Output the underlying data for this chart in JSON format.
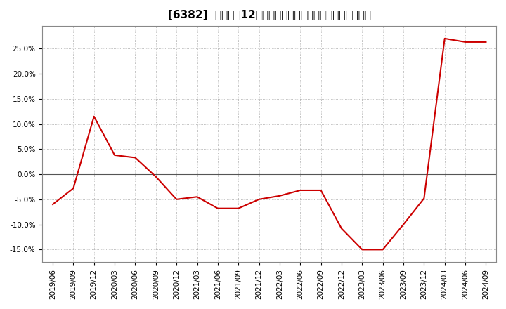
{
  "title": "[6382]  喀上高の12か月移動合計の対前年同期増減率の推移",
  "line_color": "#cc0000",
  "background_color": "#ffffff",
  "plot_bg_color": "#ffffff",
  "grid_color": "#aaaaaa",
  "zero_line_color": "#555555",
  "dates": [
    "2019/06",
    "2019/09",
    "2019/12",
    "2020/03",
    "2020/06",
    "2020/09",
    "2020/12",
    "2021/03",
    "2021/06",
    "2021/09",
    "2021/12",
    "2022/03",
    "2022/06",
    "2022/09",
    "2022/12",
    "2023/03",
    "2023/06",
    "2023/09",
    "2023/12",
    "2024/03",
    "2024/06",
    "2024/09"
  ],
  "values": [
    -0.06,
    -0.028,
    0.115,
    0.038,
    0.033,
    -0.005,
    -0.05,
    -0.045,
    -0.068,
    -0.068,
    -0.05,
    -0.043,
    -0.032,
    -0.032,
    -0.108,
    -0.15,
    -0.15,
    -0.1,
    -0.048,
    0.27,
    0.263,
    0.263
  ],
  "ylim": [
    -0.175,
    0.295
  ],
  "yticks": [
    -0.15,
    -0.1,
    -0.05,
    0.0,
    0.05,
    0.1,
    0.15,
    0.2,
    0.25
  ],
  "title_fontsize": 11,
  "tick_fontsize": 7.5
}
